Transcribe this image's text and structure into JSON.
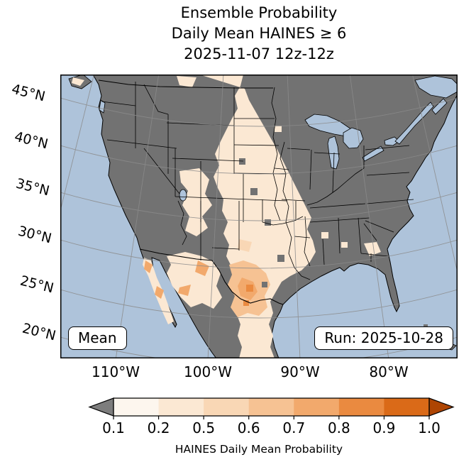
{
  "title": {
    "line1": "Ensemble Probability",
    "line2": "Daily Mean HAINES ≥ 6",
    "line3": "2025-11-07 12z-12z"
  },
  "map": {
    "lat_labels": [
      "45°N",
      "40°N",
      "35°N",
      "30°N",
      "25°N",
      "20°N"
    ],
    "lon_labels": [
      "110°W",
      "100°W",
      "90°W",
      "80°W"
    ],
    "overlays": {
      "mean_label": "Mean",
      "run_label": "Run: 2025-10-28"
    }
  },
  "colorbar": {
    "label": "HAINES Daily Mean Probability",
    "ticks": [
      "0.1",
      "0.2",
      "0.5",
      "0.6",
      "0.7",
      "0.8",
      "0.9",
      "1.0"
    ],
    "segment_colors": [
      "#fdf6ee",
      "#fbe8d3",
      "#f9d7b5",
      "#f6c293",
      "#f2a96c",
      "#ea8a40",
      "#da6a18"
    ],
    "under_color": "#7d7d7d",
    "over_color": "#ae4503"
  },
  "colors": {
    "ocean": "#aec3da",
    "land": "#727272",
    "grid": "#8b8b8b",
    "border": "#000000"
  },
  "chart_data": {
    "type": "heatmap",
    "title": "Ensemble Probability Daily Mean HAINES ≥ 6",
    "valid_period": "2025-11-07 12z-12z",
    "model_run": "2025-10-28",
    "statistic": "Mean",
    "colorbar_label": "HAINES Daily Mean Probability",
    "levels": [
      0.1,
      0.2,
      0.5,
      0.6,
      0.7,
      0.8,
      0.9,
      1.0
    ],
    "colormap": "Oranges with gray below 0.1, dark orange above 1.0",
    "projection": "Lambert conformal over CONUS and northern Mexico",
    "lat_ticks": [
      "45°N",
      "40°N",
      "35°N",
      "30°N",
      "25°N",
      "20°N"
    ],
    "lon_ticks": [
      "110°W",
      "100°W",
      "90°W",
      "80°W"
    ],
    "regions": [
      {
        "area": "Most of eastern, midwestern and coastal CONUS plus Canada",
        "probability": "< 0.1 (gray)"
      },
      {
        "area": "Northern Rockies through High Plains corridor (MT/WY/CO/NE/KS)",
        "probability": "0.1 - 0.2"
      },
      {
        "area": "Great Basin / Nevada-Utah scattered patches",
        "probability": "0.1 - 0.2"
      },
      {
        "area": "West Texas, Oklahoma and Texas panhandles",
        "probability": "0.2 - 0.5"
      },
      {
        "area": "Arizona / Sonora border patches",
        "probability": "0.2 - 0.7"
      },
      {
        "area": "Baja California peninsula spots",
        "probability": "0.5 - 0.7"
      },
      {
        "area": "Northern Mexico (Chihuahua / Coahuila, Big Bend region)",
        "probability": "0.5 - 0.8 (maximum)"
      },
      {
        "area": "Central Mexico extending to south edge of map",
        "probability": "0.1 - 0.5"
      },
      {
        "area": "Small patch Georgia / South Carolina",
        "probability": "0.1 - 0.2"
      }
    ]
  }
}
